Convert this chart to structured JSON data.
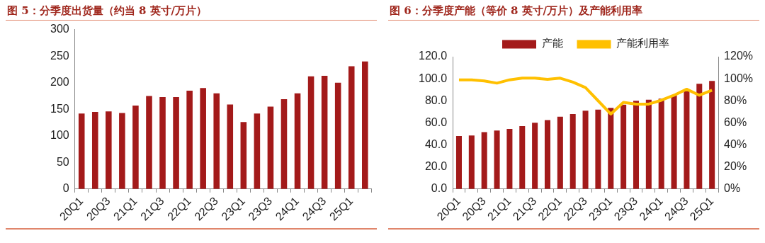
{
  "chart_data": [
    {
      "type": "bar",
      "title": "图 5：分季度出货量（约当 8 英寸/万片）",
      "categories": [
        "20Q1",
        null,
        "20Q3",
        null,
        "21Q1",
        null,
        "21Q3",
        null,
        "22Q1",
        null,
        "22Q3",
        null,
        "23Q1",
        null,
        "23Q3",
        null,
        "24Q1",
        null,
        "24Q3",
        null,
        "25Q1",
        null
      ],
      "series": [
        {
          "color": "#a31a1a",
          "values": [
            142,
            145,
            146,
            143,
            157,
            175,
            173,
            173,
            185,
            190,
            180,
            159,
            126,
            142,
            155,
            169,
            180,
            212,
            213,
            200,
            231,
            240
          ]
        }
      ],
      "ylim": [
        0,
        300
      ],
      "yticks": [
        0,
        50,
        100,
        150,
        200,
        250,
        300
      ],
      "grid": false,
      "legend": false
    },
    {
      "type": "bar",
      "title": "图 6：分季度产能（等价 8 英寸/万片）及产能利用率",
      "categories": [
        "20Q1",
        null,
        "20Q3",
        null,
        "21Q1",
        null,
        "21Q3",
        null,
        "22Q1",
        null,
        "22Q3",
        null,
        "23Q1",
        null,
        "23Q3",
        null,
        "24Q1",
        null,
        "24Q3",
        null,
        "25Q1"
      ],
      "series": [
        {
          "name": "产能",
          "color": "#a31a1a",
          "values": [
            48,
            48.5,
            51.5,
            53,
            54.5,
            57,
            60,
            62.5,
            65.5,
            68,
            71,
            72,
            73.5,
            76.5,
            80,
            81,
            82,
            85,
            89,
            95.5,
            98
          ]
        },
        {
          "name": "产能利用率",
          "type": "line",
          "axis": "y2",
          "color": "#ffc000",
          "marker": "none",
          "values": [
            99,
            99,
            98,
            96,
            99,
            100.5,
            100.5,
            99.5,
            100.5,
            97,
            92,
            80,
            68,
            78.5,
            77,
            77,
            80.5,
            85,
            90.5,
            85,
            89.5
          ]
        }
      ],
      "ylim": [
        0,
        120
      ],
      "yticks": [
        {
          "value": 0,
          "label": "0.0"
        },
        {
          "value": 20,
          "label": "20.0"
        },
        {
          "value": 40,
          "label": "40.0"
        },
        {
          "value": 60,
          "label": "60.0"
        },
        {
          "value": 80,
          "label": "80.0"
        },
        {
          "value": 100,
          "label": "100.0"
        },
        {
          "value": 120,
          "label": "120.0"
        }
      ],
      "y2lim": [
        0,
        120
      ],
      "y2ticks": [
        {
          "value": 0,
          "label": "0%"
        },
        {
          "value": 20,
          "label": "20%"
        },
        {
          "value": 40,
          "label": "40%"
        },
        {
          "value": 60,
          "label": "60%"
        },
        {
          "value": 80,
          "label": "80%"
        },
        {
          "value": 100,
          "label": "100%"
        },
        {
          "value": 120,
          "label": "120%"
        }
      ],
      "grid": false,
      "legend": "top"
    }
  ]
}
